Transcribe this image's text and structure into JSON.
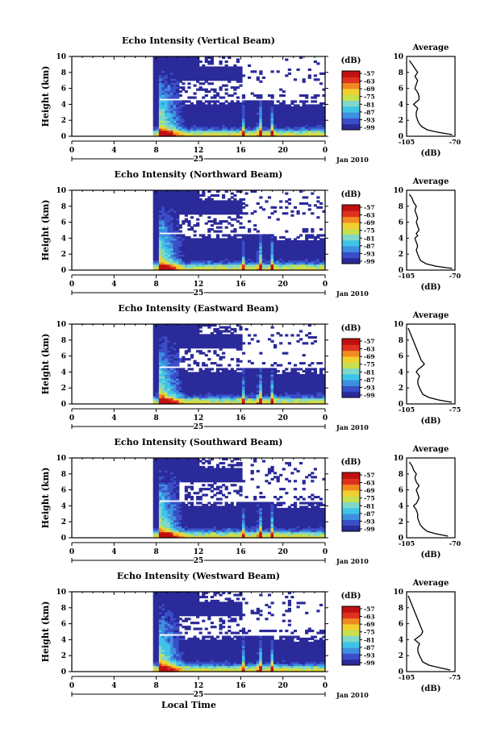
{
  "figure": {
    "xlabel": "Local Time",
    "date_label": "Jan 2010",
    "day_label": "25",
    "x_ticks": [
      "0",
      "4",
      "8",
      "12",
      "16",
      "20",
      "0"
    ],
    "y_ticks": [
      "0",
      "2",
      "4",
      "6",
      "8",
      "10"
    ],
    "ylabel": "Height (km)",
    "colorbar_unit": "(dB)",
    "colorbar_ticks": [
      "-57",
      "-63",
      "-69",
      "-75",
      "-81",
      "-87",
      "-93",
      "-99"
    ],
    "avg_title": "Average",
    "avg_xlabel": "(dB)",
    "avg_y_ticks": [
      "0",
      "2",
      "4",
      "6",
      "8",
      "10"
    ],
    "colors": {
      "scale": [
        "#2a2a9a",
        "#3a4ec8",
        "#3f8fe0",
        "#3fc4e8",
        "#7fd8c8",
        "#c8e050",
        "#f0d030",
        "#f08a20",
        "#e03020",
        "#c01010"
      ],
      "background": "#ffffff"
    }
  },
  "chart_data": [
    {
      "type": "heatmap",
      "title": "Echo Intensity (Vertical Beam)",
      "xlabel": "Local Time",
      "ylabel": "Height (km)",
      "xlim": [
        0,
        24
      ],
      "ylim": [
        0,
        10
      ],
      "zlim": [
        -99,
        -57
      ],
      "data_start_hour": 7.7,
      "average": {
        "title": "Average",
        "xlabel": "(dB)",
        "x_ticks": [
          "-105",
          "-70"
        ],
        "xlim": [
          -105,
          -70
        ],
        "height": [
          0.2,
          0.5,
          0.8,
          1.2,
          1.6,
          2.0,
          2.5,
          3.0,
          3.5,
          4.0,
          4.3,
          4.6,
          5.0,
          5.5,
          6.0,
          6.5,
          7.0,
          7.5,
          8.0,
          8.5,
          9.0,
          9.5
        ],
        "value": [
          -72,
          -82,
          -90,
          -94,
          -96,
          -97,
          -98,
          -98,
          -97,
          -100,
          -98,
          -96,
          -96,
          -97,
          -99,
          -98,
          -97,
          -99,
          -97,
          -99,
          -101,
          -103
        ]
      }
    },
    {
      "type": "heatmap",
      "title": "Echo Intensity (Northward Beam)",
      "xlabel": "Local Time",
      "ylabel": "Height (km)",
      "xlim": [
        0,
        24
      ],
      "ylim": [
        0,
        10
      ],
      "zlim": [
        -99,
        -57
      ],
      "data_start_hour": 7.7,
      "average": {
        "title": "Average",
        "xlabel": "(dB)",
        "x_ticks": [
          "-105",
          "-70"
        ],
        "xlim": [
          -105,
          -70
        ],
        "height": [
          0.2,
          0.5,
          0.8,
          1.2,
          1.6,
          2.0,
          2.5,
          3.0,
          3.5,
          4.0,
          4.3,
          4.6,
          5.0,
          5.5,
          6.0,
          6.5,
          7.0,
          7.5,
          8.0,
          8.5,
          9.0,
          9.5
        ],
        "value": [
          -72,
          -84,
          -91,
          -95,
          -96,
          -97,
          -98,
          -97,
          -98,
          -99,
          -97,
          -98,
          -96,
          -97,
          -98,
          -97,
          -98,
          -99,
          -98,
          -100,
          -101,
          -103
        ]
      }
    },
    {
      "type": "heatmap",
      "title": "Echo Intensity (Eastward Beam)",
      "xlabel": "Local Time",
      "ylabel": "Height (km)",
      "xlim": [
        0,
        24
      ],
      "ylim": [
        0,
        10
      ],
      "zlim": [
        -99,
        -57
      ],
      "data_start_hour": 7.7,
      "average": {
        "title": "Average",
        "xlabel": "(dB)",
        "x_ticks": [
          "-105",
          "-75"
        ],
        "xlim": [
          -105,
          -75
        ],
        "height": [
          0.2,
          0.5,
          0.8,
          1.2,
          1.6,
          2.0,
          2.5,
          3.0,
          3.5,
          4.0,
          4.3,
          4.6,
          5.0,
          5.5,
          6.0,
          6.5,
          7.0,
          7.5,
          8.0,
          8.5,
          9.0,
          9.5
        ],
        "value": [
          -77,
          -85,
          -91,
          -95,
          -96,
          -97,
          -98,
          -98,
          -97,
          -99,
          -98,
          -96,
          -94,
          -96,
          -97,
          -98,
          -99,
          -100,
          -101,
          -102,
          -103,
          -104
        ]
      }
    },
    {
      "type": "heatmap",
      "title": "Echo Intensity (Southward Beam)",
      "xlabel": "Local Time",
      "ylabel": "Height (km)",
      "xlim": [
        0,
        24
      ],
      "ylim": [
        0,
        10
      ],
      "zlim": [
        -99,
        -57
      ],
      "data_start_hour": 7.7,
      "average": {
        "title": "Average",
        "xlabel": "(dB)",
        "x_ticks": [
          "-105",
          "-70"
        ],
        "xlim": [
          -105,
          -70
        ],
        "height": [
          0.2,
          0.5,
          0.8,
          1.2,
          1.6,
          2.0,
          2.5,
          3.0,
          3.5,
          4.0,
          4.3,
          4.6,
          5.0,
          5.5,
          6.0,
          6.5,
          7.0,
          7.5,
          8.0,
          8.5,
          9.0,
          9.5
        ],
        "value": [
          -75,
          -84,
          -90,
          -93,
          -95,
          -96,
          -97,
          -97,
          -98,
          -100,
          -98,
          -97,
          -96,
          -97,
          -98,
          -96,
          -98,
          -99,
          -98,
          -100,
          -101,
          -103
        ]
      }
    },
    {
      "type": "heatmap",
      "title": "Echo Intensity (Westward Beam)",
      "xlabel": "Local Time",
      "ylabel": "Height (km)",
      "xlim": [
        0,
        24
      ],
      "ylim": [
        0,
        10
      ],
      "zlim": [
        -99,
        -57
      ],
      "data_start_hour": 7.7,
      "average": {
        "title": "Average",
        "xlabel": "(dB)",
        "x_ticks": [
          "-105",
          "-75"
        ],
        "xlim": [
          -105,
          -75
        ],
        "height": [
          0.2,
          0.5,
          0.8,
          1.2,
          1.6,
          2.0,
          2.5,
          3.0,
          3.5,
          4.0,
          4.3,
          4.6,
          5.0,
          5.5,
          6.0,
          6.5,
          7.0,
          7.5,
          8.0,
          8.5,
          9.0,
          9.5
        ],
        "value": [
          -78,
          -85,
          -91,
          -95,
          -96,
          -97,
          -98,
          -98,
          -97,
          -100,
          -98,
          -96,
          -95,
          -96,
          -97,
          -98,
          -99,
          -100,
          -101,
          -102,
          -103,
          -104
        ]
      }
    }
  ]
}
